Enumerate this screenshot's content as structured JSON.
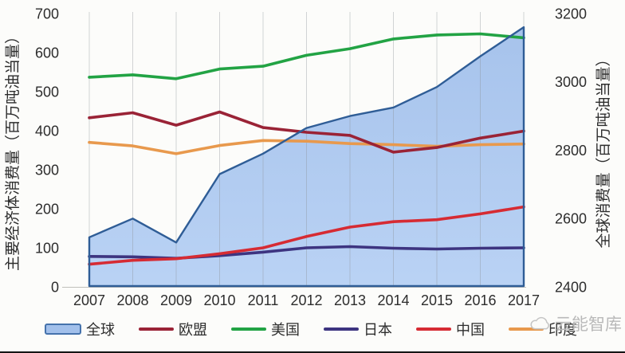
{
  "watermark": {
    "text": "云能智库",
    "icon": "cloud-logo",
    "color": "#B9B9B9"
  },
  "chart_data": {
    "type": "area+line",
    "x": [
      2007,
      2008,
      2009,
      2010,
      2011,
      2012,
      2013,
      2014,
      2015,
      2016,
      2017
    ],
    "left_axis": {
      "title": "主要经济体消费量（百万吨油当量）",
      "min": 0,
      "max": 700,
      "ticks": [
        0,
        100,
        200,
        300,
        400,
        500,
        600,
        700
      ]
    },
    "right_axis": {
      "title": "全球消费量（百万吨油当量）",
      "min": 2400,
      "max": 3200,
      "ticks": [
        2400,
        2600,
        2800,
        3000,
        3200
      ]
    },
    "grid": "vertical-per-year",
    "legend_position": "bottom",
    "series": [
      {
        "id": "global",
        "label": "全球",
        "type": "area",
        "axis": "right",
        "color": "#2F5D96",
        "fill_top": "#A2C0EB",
        "fill_bottom": "#B6D0F4",
        "values": [
          2545,
          2600,
          2530,
          2730,
          2790,
          2865,
          2900,
          2925,
          2985,
          3075,
          3160
        ]
      },
      {
        "id": "eu",
        "label": "欧盟",
        "type": "line",
        "axis": "left",
        "color": "#9A2336",
        "values": [
          433,
          446,
          414,
          448,
          408,
          396,
          388,
          345,
          357,
          381,
          399
        ]
      },
      {
        "id": "us",
        "label": "美国",
        "type": "line",
        "axis": "left",
        "color": "#22A344",
        "values": [
          537,
          543,
          533,
          558,
          565,
          593,
          610,
          635,
          645,
          648,
          638
        ]
      },
      {
        "id": "japan",
        "label": "日本",
        "type": "line",
        "axis": "left",
        "color": "#3D3480",
        "values": [
          78,
          77,
          73,
          80,
          89,
          100,
          103,
          99,
          97,
          99,
          100
        ]
      },
      {
        "id": "china",
        "label": "中国",
        "type": "line",
        "axis": "left",
        "color": "#D62B33",
        "values": [
          58,
          68,
          72,
          85,
          100,
          129,
          153,
          167,
          172,
          187,
          205
        ]
      },
      {
        "id": "india",
        "label": "印度",
        "type": "line",
        "axis": "left",
        "color": "#E8994D",
        "values": [
          370,
          361,
          341,
          362,
          375,
          373,
          367,
          364,
          360,
          364,
          366
        ]
      }
    ],
    "colors": {
      "gridline": "#8C9196",
      "baseline": "#C0C0BB",
      "tick_text": "#2D2D2D"
    }
  }
}
